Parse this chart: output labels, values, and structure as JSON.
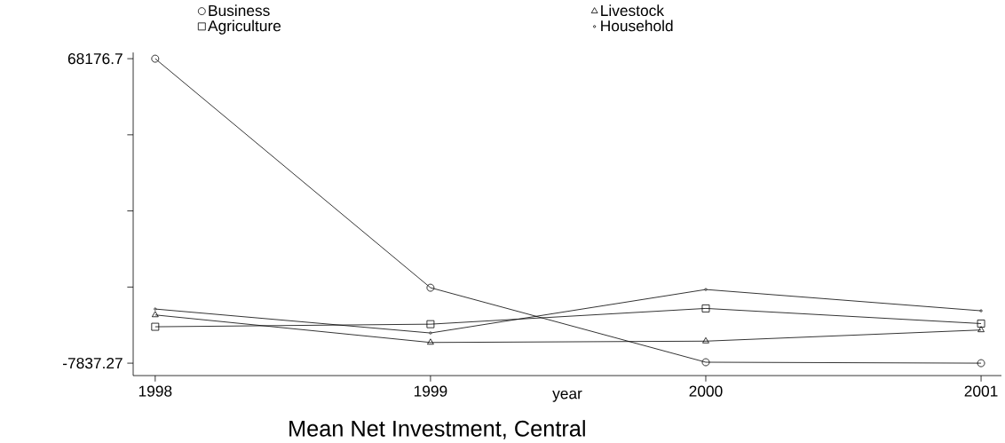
{
  "chart_data": {
    "type": "line",
    "title": "Mean Net Investment, Central",
    "xlabel": "year",
    "x": [
      1998,
      1999,
      2000,
      2001
    ],
    "series": [
      {
        "name": "Business",
        "color": "#000000",
        "marker": "circle",
        "values": [
          68176.7,
          11000,
          -7600,
          -7837.27
        ]
      },
      {
        "name": "Livestock",
        "color": "#000000",
        "marker": "triangle",
        "values": [
          4200,
          -2670,
          -2340,
          450
        ]
      },
      {
        "name": "Agriculture",
        "color": "#000000",
        "marker": "square",
        "values": [
          1250,
          1900,
          5830,
          2050
        ]
      },
      {
        "name": "Household",
        "color": "#000000",
        "marker": "point",
        "values": [
          5680,
          -300,
          10550,
          5240
        ]
      }
    ],
    "xlim": [
      1997.92,
      2001.074
    ],
    "xticks": [
      1998,
      1999,
      2000,
      2001
    ],
    "ylim": [
      -10940,
      69730
    ],
    "yticks": [
      -7837.27,
      {
        "value": 11166.22,
        "label": null
      },
      {
        "value": 30169.72,
        "label": null
      },
      {
        "value": 49173.21,
        "label": null
      },
      68176.7
    ],
    "legend": "top",
    "line_style": "solid"
  }
}
